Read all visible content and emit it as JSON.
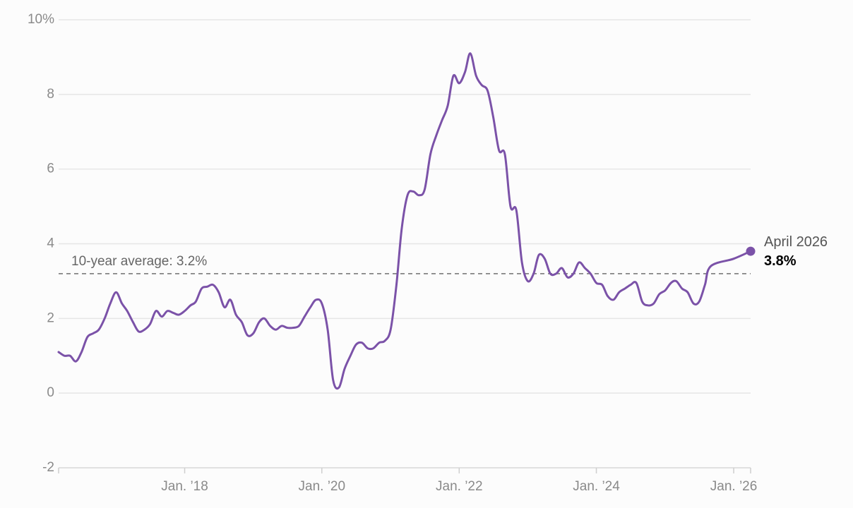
{
  "chart_data": {
    "type": "line",
    "title": "",
    "xlabel": "",
    "ylabel": "",
    "x_range": [
      "2016-03-01",
      "2026-04-01"
    ],
    "ylim": [
      -2,
      10
    ],
    "y_ticks": [
      {
        "value": 10,
        "label": "10%"
      },
      {
        "value": 8,
        "label": "8"
      },
      {
        "value": 6,
        "label": "6"
      },
      {
        "value": 4,
        "label": "4"
      },
      {
        "value": 2,
        "label": "2"
      },
      {
        "value": 0,
        "label": "0"
      },
      {
        "value": -2,
        "label": "-2"
      }
    ],
    "x_ticks": [
      {
        "date": "2018-01-01",
        "label": "Jan. ’18"
      },
      {
        "date": "2020-01-01",
        "label": "Jan. ’20"
      },
      {
        "date": "2022-01-01",
        "label": "Jan. ’22"
      },
      {
        "date": "2024-01-01",
        "label": "Jan. ’24"
      },
      {
        "date": "2026-01-01",
        "label": "Jan. ’26"
      }
    ],
    "grid": true,
    "colors": {
      "line": "#7b52a8",
      "grid": "#e6e6e6",
      "average": "#707070"
    },
    "reference_line": {
      "value": 3.2,
      "label": "10-year average: 3.2%"
    },
    "end_annotation": {
      "date_label": "April 2026",
      "value_label": "3.8%"
    },
    "series": [
      {
        "values": [
          [
            "2016-03-01",
            1.1
          ],
          [
            "2016-04-01",
            1.0
          ],
          [
            "2016-05-01",
            1.0
          ],
          [
            "2016-06-01",
            0.85
          ],
          [
            "2016-07-01",
            1.1
          ],
          [
            "2016-08-01",
            1.5
          ],
          [
            "2016-09-01",
            1.6
          ],
          [
            "2016-10-01",
            1.7
          ],
          [
            "2016-11-01",
            2.0
          ],
          [
            "2016-12-01",
            2.4
          ],
          [
            "2017-01-01",
            2.7
          ],
          [
            "2017-02-01",
            2.4
          ],
          [
            "2017-03-01",
            2.2
          ],
          [
            "2017-04-01",
            1.9
          ],
          [
            "2017-05-01",
            1.65
          ],
          [
            "2017-06-01",
            1.7
          ],
          [
            "2017-07-01",
            1.85
          ],
          [
            "2017-08-01",
            2.2
          ],
          [
            "2017-09-01",
            2.05
          ],
          [
            "2017-10-01",
            2.2
          ],
          [
            "2017-11-01",
            2.15
          ],
          [
            "2017-12-01",
            2.1
          ],
          [
            "2018-01-01",
            2.2
          ],
          [
            "2018-02-01",
            2.35
          ],
          [
            "2018-03-01",
            2.45
          ],
          [
            "2018-04-01",
            2.8
          ],
          [
            "2018-05-01",
            2.85
          ],
          [
            "2018-06-01",
            2.9
          ],
          [
            "2018-07-01",
            2.7
          ],
          [
            "2018-08-01",
            2.3
          ],
          [
            "2018-09-01",
            2.5
          ],
          [
            "2018-10-01",
            2.1
          ],
          [
            "2018-11-01",
            1.9
          ],
          [
            "2018-12-01",
            1.55
          ],
          [
            "2019-01-01",
            1.6
          ],
          [
            "2019-02-01",
            1.9
          ],
          [
            "2019-03-01",
            2.0
          ],
          [
            "2019-04-01",
            1.8
          ],
          [
            "2019-05-01",
            1.7
          ],
          [
            "2019-06-01",
            1.8
          ],
          [
            "2019-07-01",
            1.75
          ],
          [
            "2019-08-01",
            1.75
          ],
          [
            "2019-09-01",
            1.8
          ],
          [
            "2019-10-01",
            2.05
          ],
          [
            "2019-11-01",
            2.3
          ],
          [
            "2019-12-01",
            2.5
          ],
          [
            "2020-01-01",
            2.4
          ],
          [
            "2020-02-01",
            1.7
          ],
          [
            "2020-03-01",
            0.35
          ],
          [
            "2020-04-01",
            0.15
          ],
          [
            "2020-05-01",
            0.65
          ],
          [
            "2020-06-01",
            1.0
          ],
          [
            "2020-07-01",
            1.3
          ],
          [
            "2020-08-01",
            1.35
          ],
          [
            "2020-09-01",
            1.2
          ],
          [
            "2020-10-01",
            1.2
          ],
          [
            "2020-11-01",
            1.35
          ],
          [
            "2020-12-01",
            1.4
          ],
          [
            "2021-01-01",
            1.7
          ],
          [
            "2021-02-01",
            2.9
          ],
          [
            "2021-03-01",
            4.4
          ],
          [
            "2021-04-01",
            5.3
          ],
          [
            "2021-05-01",
            5.4
          ],
          [
            "2021-06-01",
            5.3
          ],
          [
            "2021-07-01",
            5.45
          ],
          [
            "2021-08-01",
            6.4
          ],
          [
            "2021-09-01",
            6.9
          ],
          [
            "2021-10-01",
            7.3
          ],
          [
            "2021-11-01",
            7.7
          ],
          [
            "2021-12-01",
            8.5
          ],
          [
            "2022-01-01",
            8.3
          ],
          [
            "2022-02-01",
            8.6
          ],
          [
            "2022-03-01",
            9.1
          ],
          [
            "2022-04-01",
            8.5
          ],
          [
            "2022-05-01",
            8.25
          ],
          [
            "2022-06-01",
            8.1
          ],
          [
            "2022-07-01",
            7.4
          ],
          [
            "2022-08-01",
            6.5
          ],
          [
            "2022-09-01",
            6.4
          ],
          [
            "2022-10-01",
            5.0
          ],
          [
            "2022-11-01",
            4.9
          ],
          [
            "2022-12-01",
            3.5
          ],
          [
            "2023-01-01",
            3.0
          ],
          [
            "2023-02-01",
            3.2
          ],
          [
            "2023-03-01",
            3.7
          ],
          [
            "2023-04-01",
            3.6
          ],
          [
            "2023-05-01",
            3.2
          ],
          [
            "2023-06-01",
            3.2
          ],
          [
            "2023-07-01",
            3.35
          ],
          [
            "2023-08-01",
            3.1
          ],
          [
            "2023-09-01",
            3.2
          ],
          [
            "2023-10-01",
            3.5
          ],
          [
            "2023-11-01",
            3.35
          ],
          [
            "2023-12-01",
            3.2
          ],
          [
            "2024-01-01",
            2.95
          ],
          [
            "2024-02-01",
            2.9
          ],
          [
            "2024-03-01",
            2.6
          ],
          [
            "2024-04-01",
            2.5
          ],
          [
            "2024-05-01",
            2.7
          ],
          [
            "2024-06-01",
            2.8
          ],
          [
            "2024-07-01",
            2.9
          ],
          [
            "2024-08-01",
            2.95
          ],
          [
            "2024-09-01",
            2.45
          ],
          [
            "2024-10-01",
            2.35
          ],
          [
            "2024-11-01",
            2.4
          ],
          [
            "2024-12-01",
            2.65
          ],
          [
            "2025-01-01",
            2.75
          ],
          [
            "2025-02-01",
            2.95
          ],
          [
            "2025-03-01",
            3.0
          ],
          [
            "2025-04-01",
            2.8
          ],
          [
            "2025-05-01",
            2.7
          ],
          [
            "2025-06-01",
            2.4
          ],
          [
            "2025-07-01",
            2.45
          ],
          [
            "2025-08-01",
            2.9
          ],
          [
            "2025-09-01",
            3.4
          ],
          [
            "2026-01-01",
            3.6
          ],
          [
            "2026-04-01",
            3.8
          ]
        ]
      }
    ]
  }
}
